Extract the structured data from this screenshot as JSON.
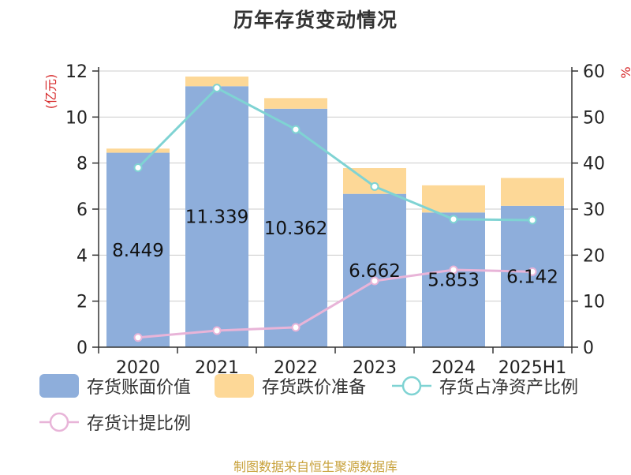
{
  "page": {
    "title": "历年存货变动情况",
    "source": "制图数据来自恒生聚源数据库"
  },
  "legend": {
    "book_value": "存货账面价值",
    "impairment": "存货跌价准备",
    "asset_ratio": "存货占净资产比例",
    "provision_ratio": "存货计提比例"
  },
  "chart_data": {
    "type": "bar",
    "title": "历年存货变动情况",
    "categories": [
      "2020",
      "2021",
      "2022",
      "2023",
      "2024",
      "2025H1"
    ],
    "ylabel": "(亿元)",
    "ylabel_right": "%",
    "ylim": [
      0,
      12
    ],
    "ylim_right": [
      0,
      60
    ],
    "y_ticks": [
      0,
      2,
      4,
      6,
      8,
      10,
      12
    ],
    "y_ticks_right": [
      0,
      10,
      20,
      30,
      40,
      50,
      60
    ],
    "grid": true,
    "legend_position": "bottom",
    "data_labels": [
      "8.449",
      "11.339",
      "10.362",
      "6.662",
      "5.853",
      "6.142"
    ],
    "series": [
      {
        "name": "存货账面价值",
        "kind": "bar",
        "stack": "inventory",
        "axis": "left",
        "color": "#8eaedb",
        "values": [
          8.449,
          11.339,
          10.362,
          6.662,
          5.853,
          6.142
        ]
      },
      {
        "name": "存货跌价准备",
        "kind": "bar",
        "stack": "inventory",
        "axis": "left",
        "color": "#fdd897",
        "values": [
          0.18,
          0.42,
          0.46,
          1.12,
          1.18,
          1.21
        ]
      },
      {
        "name": "存货占净资产比例",
        "kind": "line",
        "axis": "right",
        "color": "#7fd3d3",
        "values": [
          39.0,
          56.3,
          47.3,
          34.9,
          27.8,
          27.6
        ]
      },
      {
        "name": "存货计提比例",
        "kind": "line",
        "axis": "right",
        "color": "#e8b4d8",
        "values": [
          2.1,
          3.6,
          4.3,
          14.4,
          16.8,
          16.4
        ]
      }
    ]
  }
}
